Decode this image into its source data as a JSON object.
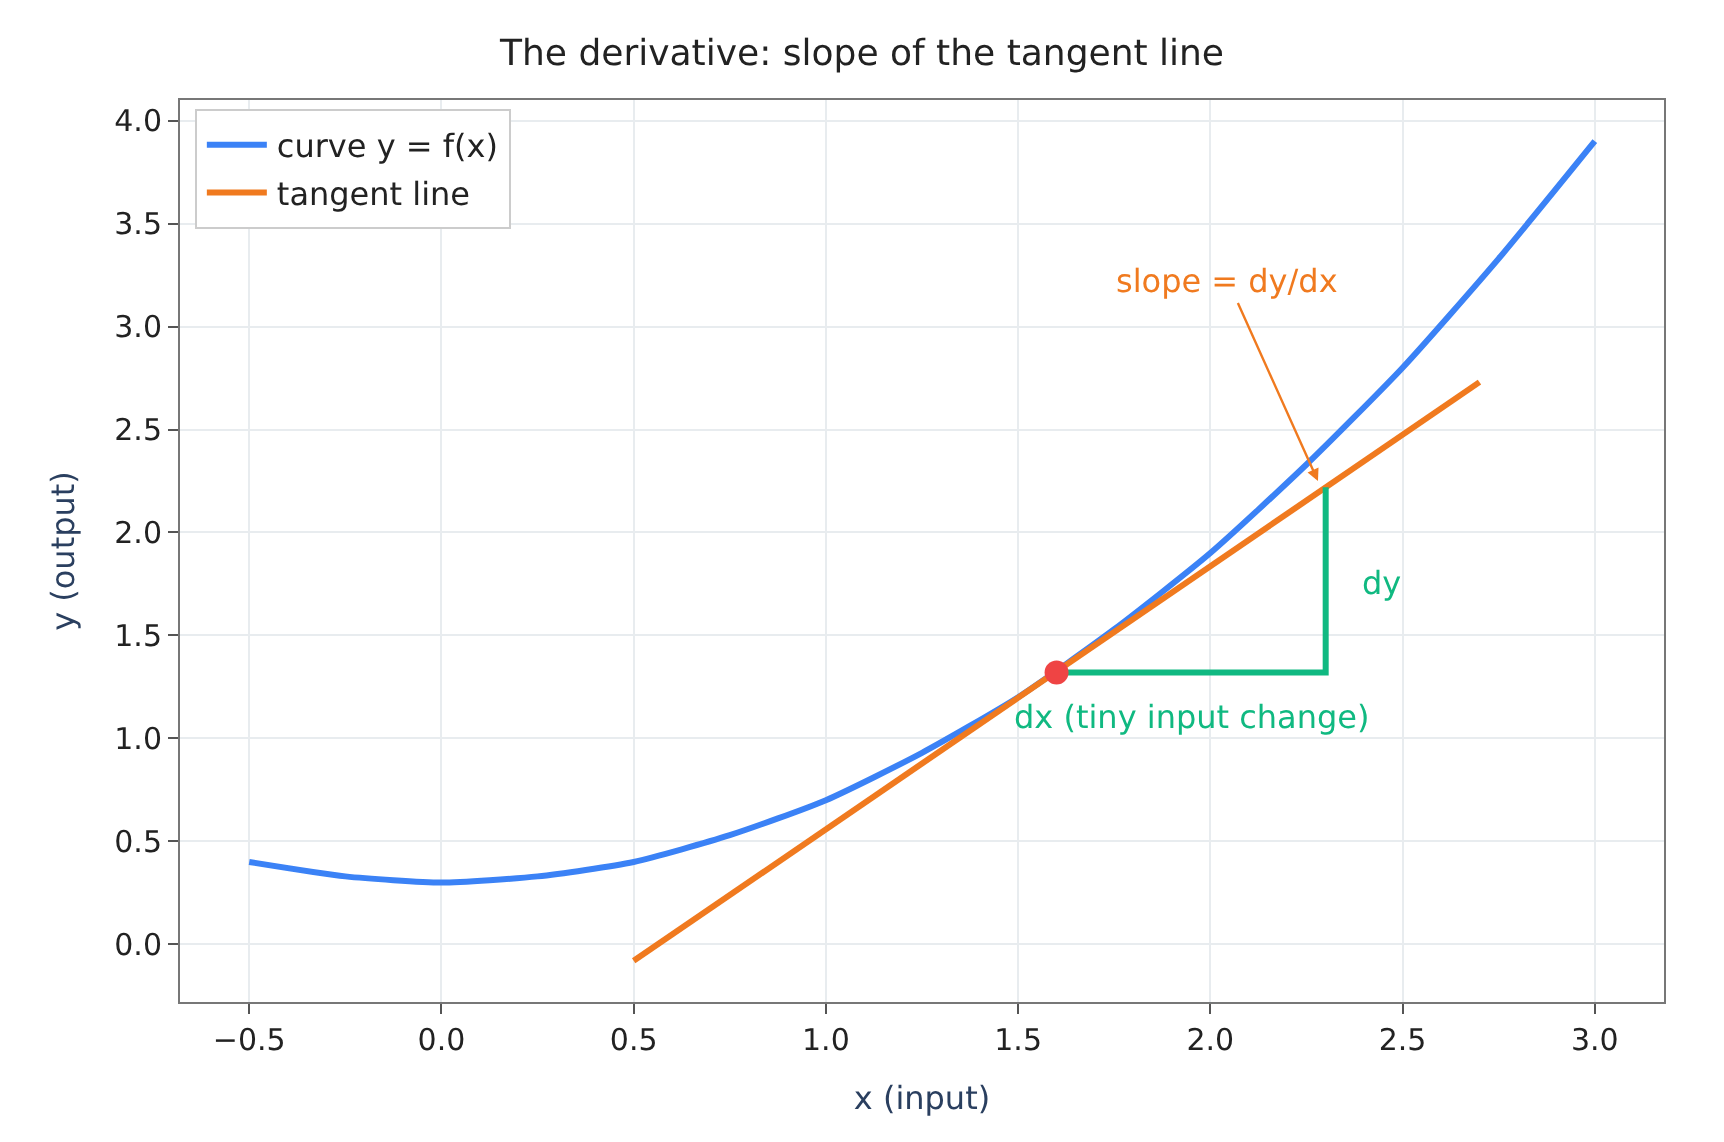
{
  "chart_data": {
    "type": "line",
    "title": "The derivative: slope of the tangent line",
    "xlabel": "x (input)",
    "ylabel": "y (output)",
    "series": [
      {
        "name": "curve y = f(x)",
        "color": "#3b82f6",
        "x": [
          -0.5,
          -0.25,
          0,
          0.25,
          0.5,
          0.75,
          1,
          1.25,
          1.5,
          1.75,
          2,
          2.25,
          2.5,
          2.75,
          3
        ],
        "values": [
          0.4,
          0.33,
          0.3,
          0.33,
          0.4,
          0.53,
          0.7,
          0.93,
          1.2,
          1.53,
          1.9,
          2.33,
          2.8,
          3.33,
          3.9
        ]
      },
      {
        "name": "tangent line",
        "color": "#f07a1f",
        "x": [
          0.5,
          2.7
        ],
        "values": [
          -0.08,
          2.73
        ]
      },
      {
        "color": "#10b981",
        "x": [
          1.6,
          2.3,
          2.3
        ],
        "values": [
          1.32,
          1.32,
          2.22
        ]
      },
      {
        "type": "scatter",
        "marker": "circle",
        "color": "#ef4444",
        "x": [
          1.6
        ],
        "values": [
          1.32
        ]
      }
    ],
    "annotations": [
      {
        "text": "slope = dy/dx",
        "x": 2.28,
        "y": 2.25
      },
      {
        "text": "dy",
        "x": 2.3,
        "y": 1.75
      },
      {
        "text": "dx (tiny input change)",
        "x": 1.95,
        "y": 1.32
      }
    ],
    "xlim": [
      -0.68,
      3.18
    ],
    "ylim": [
      -0.28,
      4.1
    ],
    "xticks": [
      {
        "value": -0.5,
        "label": "−0.5"
      },
      {
        "value": 0,
        "label": "0.0"
      },
      {
        "value": 0.5,
        "label": "0.5"
      },
      {
        "value": 1,
        "label": "1.0"
      },
      {
        "value": 1.5,
        "label": "1.5"
      },
      {
        "value": 2,
        "label": "2.0"
      },
      {
        "value": 2.5,
        "label": "2.5"
      },
      {
        "value": 3,
        "label": "3.0"
      }
    ],
    "yticks": [
      {
        "value": 0,
        "label": "0.0"
      },
      {
        "value": 0.5,
        "label": "0.5"
      },
      {
        "value": 1,
        "label": "1.0"
      },
      {
        "value": 1.5,
        "label": "1.5"
      },
      {
        "value": 2,
        "label": "2.0"
      },
      {
        "value": 2.5,
        "label": "2.5"
      },
      {
        "value": 3,
        "label": "3.0"
      },
      {
        "value": 3.5,
        "label": "3.5"
      },
      {
        "value": 4,
        "label": "4.0"
      }
    ],
    "grid": true,
    "legend": "top left"
  }
}
